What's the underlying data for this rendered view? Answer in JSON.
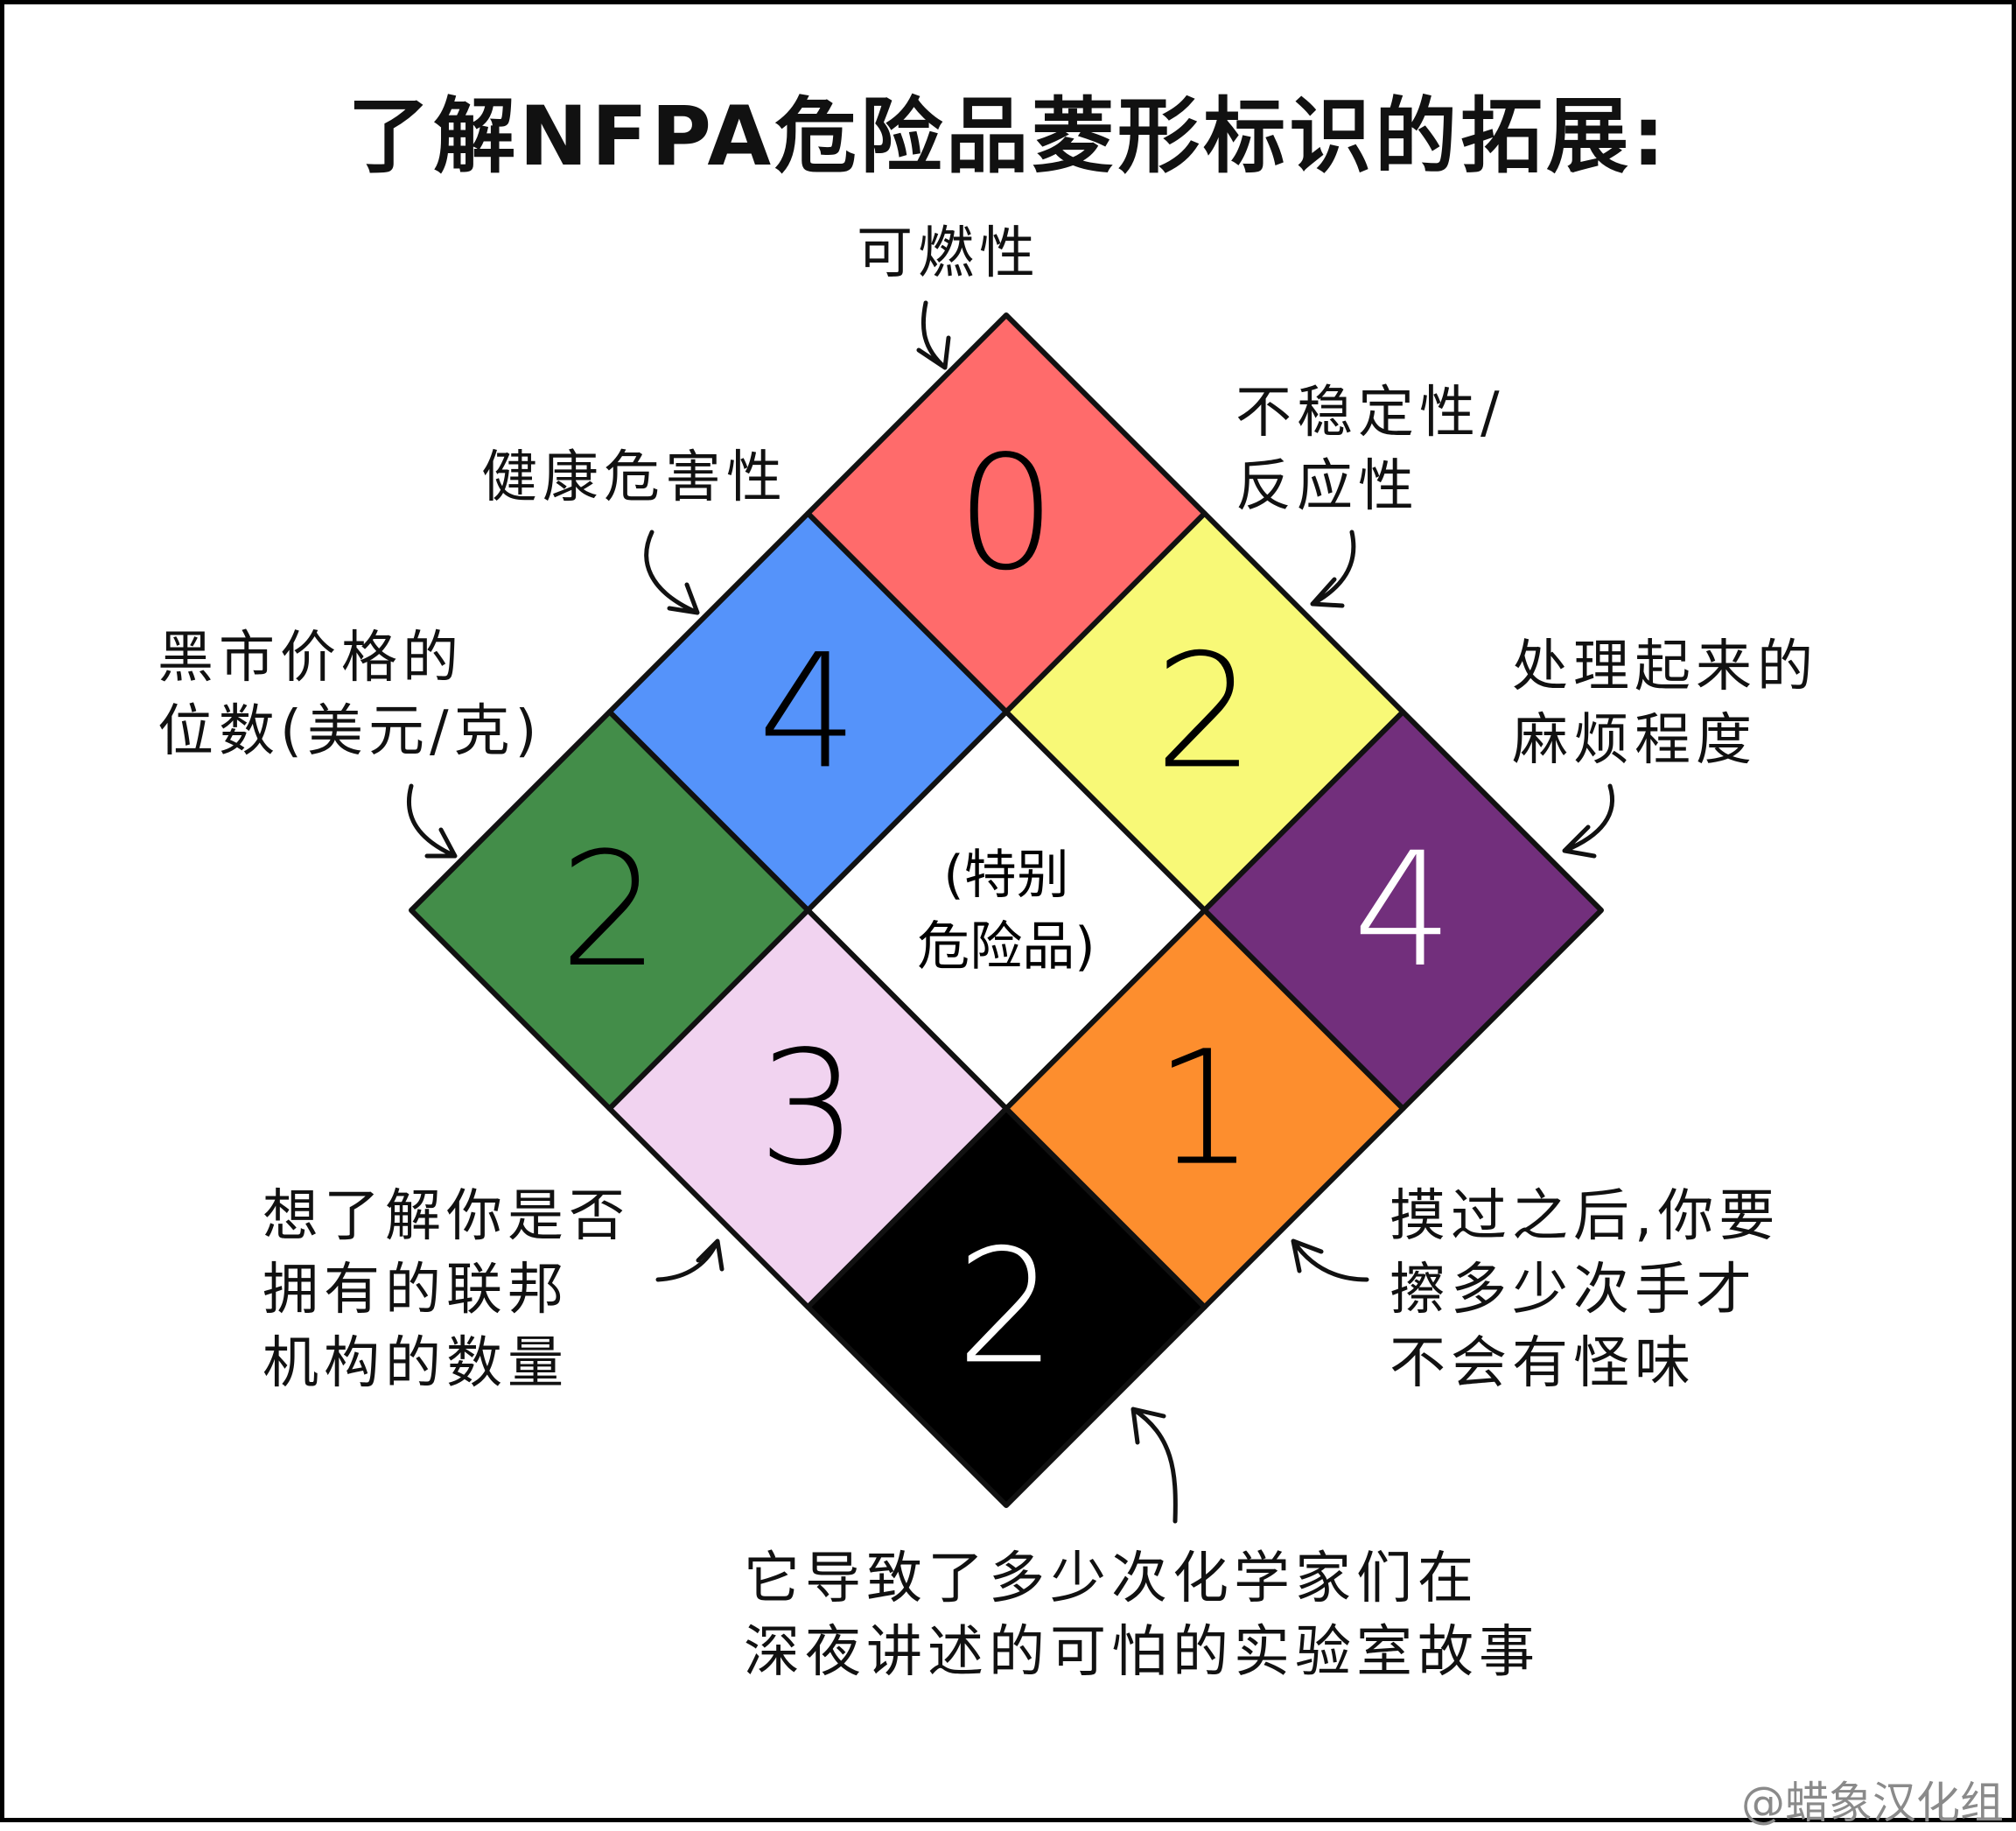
{
  "title": "了解NFPA危险品菱形标识的拓展:",
  "cells": [
    {
      "key": "flammability",
      "value": "0",
      "color": "#ff6b6b",
      "text_color": "#000000"
    },
    {
      "key": "health",
      "value": "4",
      "color": "#5593fa",
      "text_color": "#000000"
    },
    {
      "key": "instability",
      "value": "2",
      "color": "#f8f977",
      "text_color": "#000000"
    },
    {
      "key": "black_market",
      "value": "2",
      "color": "#438d49",
      "text_color": "#000000"
    },
    {
      "key": "special",
      "value": "",
      "color": "#ffffff",
      "text_color": "#000000"
    },
    {
      "key": "handling",
      "value": "4",
      "color": "#722f7c",
      "text_color": "#ffffff"
    },
    {
      "key": "agencies",
      "value": "3",
      "color": "#f1d3f0",
      "text_color": "#000000"
    },
    {
      "key": "hand_washing",
      "value": "1",
      "color": "#fd8e2e",
      "text_color": "#000000"
    },
    {
      "key": "stories",
      "value": "2",
      "color": "#000000",
      "text_color": "#ffffff"
    }
  ],
  "special_label": [
    "(特别",
    "危险品)"
  ],
  "labels": {
    "flammability": [
      "可燃性"
    ],
    "instability": [
      "不稳定性/",
      "反应性"
    ],
    "health": [
      "健康危害性"
    ],
    "black_market": [
      "黑市价格的",
      "位数(美元/克)"
    ],
    "handling": [
      "处理起来的",
      "麻烦程度"
    ],
    "agencies": [
      "想了解你是否",
      "拥有的联邦",
      "机构的数量"
    ],
    "hand_washing": [
      "摸过之后,你要",
      "擦多少次手才",
      "不会有怪味"
    ],
    "stories": [
      "它导致了多少次化学家们在",
      "深夜讲述的可怕的实验室故事"
    ]
  },
  "credit": "@蜡象汉化组"
}
